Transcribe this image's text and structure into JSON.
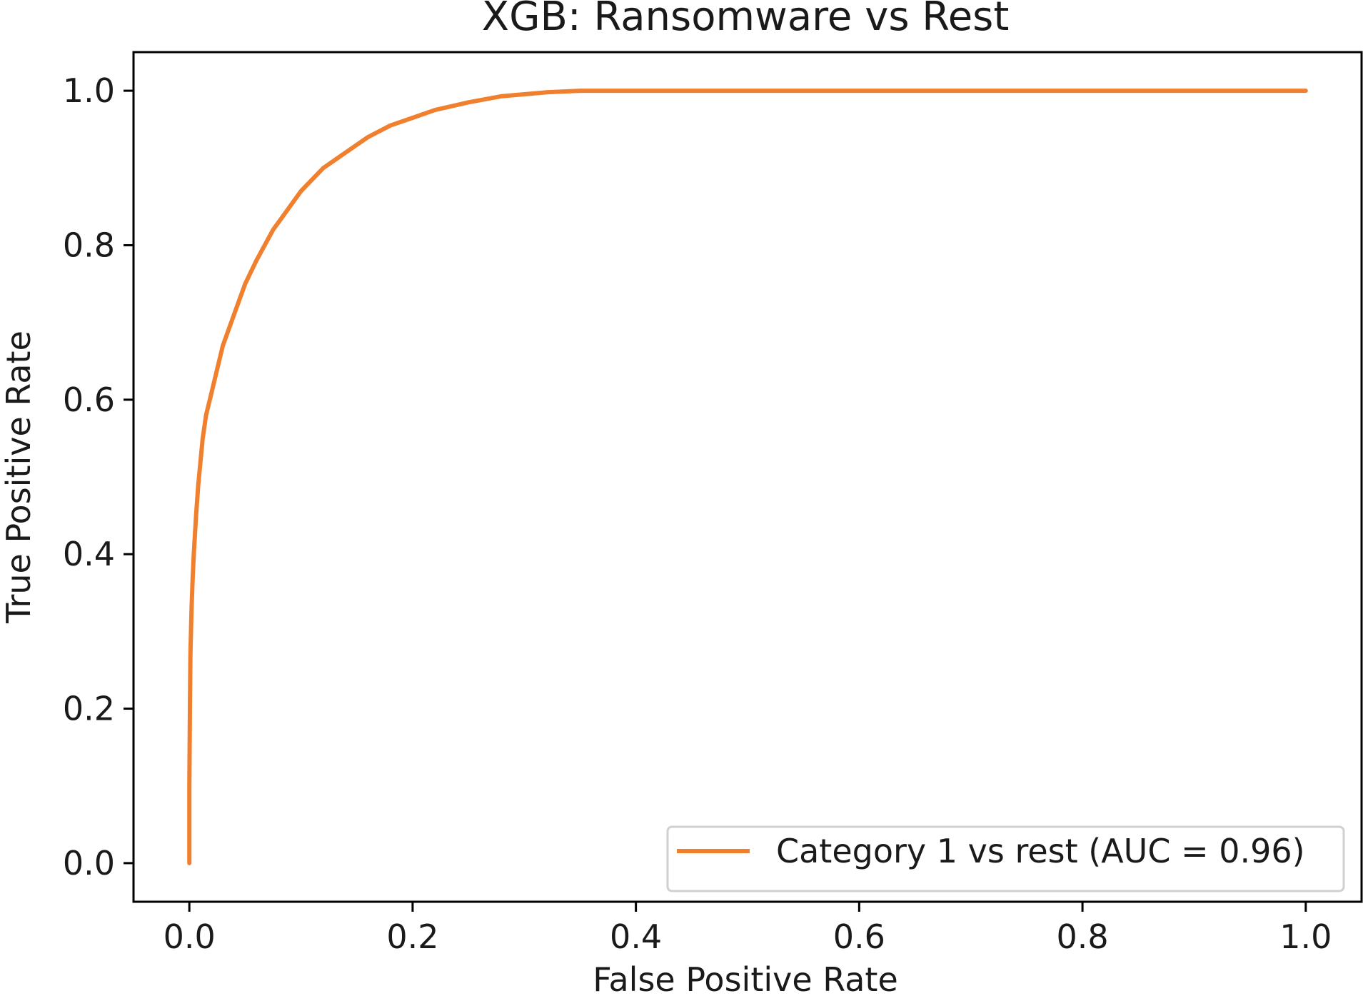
{
  "chart_data": {
    "type": "line",
    "title": "XGB: Ransomware vs Rest",
    "xlabel": "False Positive Rate",
    "ylabel": "True Positive Rate",
    "xlim": [
      -0.05,
      1.05
    ],
    "ylim": [
      -0.05,
      1.05
    ],
    "xticks": [
      0.0,
      0.2,
      0.4,
      0.6,
      0.8,
      1.0
    ],
    "xtick_labels": [
      "0.0",
      "0.2",
      "0.4",
      "0.6",
      "0.8",
      "1.0"
    ],
    "yticks": [
      0.0,
      0.2,
      0.4,
      0.6,
      0.8,
      1.0
    ],
    "ytick_labels": [
      "0.0",
      "0.2",
      "0.4",
      "0.6",
      "0.8",
      "1.0"
    ],
    "grid": false,
    "legend_position": "lower-right",
    "series": [
      {
        "name": "Category 1 vs rest (AUC = 0.96)",
        "color": "#f07f2e",
        "x": [
          0.0,
          0.0,
          0.0005,
          0.001,
          0.002,
          0.003,
          0.004,
          0.006,
          0.008,
          0.01,
          0.012,
          0.015,
          0.02,
          0.025,
          0.03,
          0.04,
          0.05,
          0.06,
          0.075,
          0.085,
          0.1,
          0.12,
          0.14,
          0.16,
          0.18,
          0.2,
          0.22,
          0.25,
          0.28,
          0.32,
          0.35,
          0.4,
          0.5,
          0.6,
          0.8,
          1.0
        ],
        "y": [
          0.0,
          0.1,
          0.2,
          0.27,
          0.33,
          0.37,
          0.4,
          0.45,
          0.49,
          0.52,
          0.55,
          0.58,
          0.61,
          0.64,
          0.67,
          0.71,
          0.75,
          0.78,
          0.82,
          0.84,
          0.87,
          0.9,
          0.92,
          0.94,
          0.955,
          0.965,
          0.975,
          0.985,
          0.993,
          0.998,
          1.0,
          1.0,
          1.0,
          1.0,
          1.0,
          1.0
        ]
      }
    ]
  }
}
